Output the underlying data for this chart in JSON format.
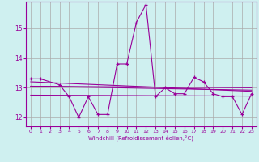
{
  "xlabel": "Windchill (Refroidissement éolien,°C)",
  "background_color": "#cff0f0",
  "line_color": "#990099",
  "grid_color": "#aaaaaa",
  "xlim": [
    -0.5,
    23.5
  ],
  "ylim": [
    11.7,
    15.9
  ],
  "yticks": [
    12,
    13,
    14,
    15
  ],
  "xticks": [
    0,
    1,
    2,
    3,
    4,
    5,
    6,
    7,
    8,
    9,
    10,
    11,
    12,
    13,
    14,
    15,
    16,
    17,
    18,
    19,
    20,
    21,
    22,
    23
  ],
  "main_series": {
    "x": [
      0,
      1,
      3,
      4,
      5,
      6,
      7,
      8,
      9,
      10,
      11,
      12,
      13,
      14,
      15,
      16,
      17,
      18,
      19,
      20,
      21,
      22,
      23
    ],
    "y": [
      13.3,
      13.3,
      13.1,
      12.7,
      12.0,
      12.7,
      12.1,
      12.1,
      13.8,
      13.8,
      15.2,
      15.8,
      12.7,
      13.0,
      12.8,
      12.8,
      13.35,
      13.2,
      12.8,
      12.7,
      12.7,
      12.1,
      12.8
    ]
  },
  "trend_lines": [
    {
      "x": [
        0,
        23
      ],
      "y": [
        13.05,
        13.0
      ]
    },
    {
      "x": [
        0,
        23
      ],
      "y": [
        13.2,
        12.88
      ]
    },
    {
      "x": [
        0,
        23
      ],
      "y": [
        12.75,
        12.72
      ]
    },
    {
      "x": [
        0,
        23
      ],
      "y": [
        13.05,
        12.92
      ]
    }
  ]
}
